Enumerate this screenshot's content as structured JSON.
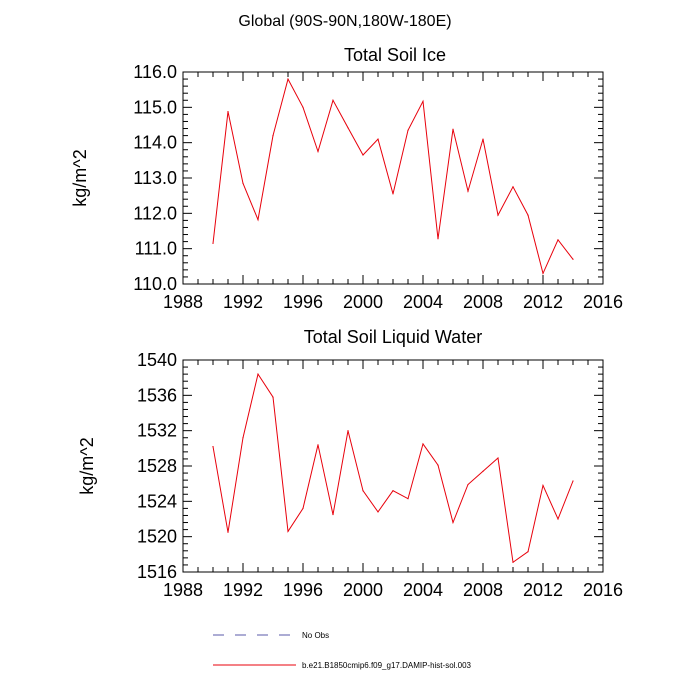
{
  "header": {
    "title": "Global (90S-90N,180W-180E)"
  },
  "chart_data": [
    {
      "type": "line",
      "title": "Total Soil Ice",
      "ylabel": "kg/m^2",
      "xlabel": "",
      "xlim": [
        1988,
        2016
      ],
      "ylim": [
        110.0,
        116.0
      ],
      "x_ticks": [
        1988,
        1992,
        1996,
        2000,
        2004,
        2008,
        2012,
        2016
      ],
      "x_tick_labels": [
        "1988",
        "1992",
        "1996",
        "2000",
        "2004",
        "2008",
        "2012",
        "2016"
      ],
      "y_ticks": [
        110,
        111,
        112,
        113,
        114,
        115,
        116
      ],
      "y_tick_labels": [
        "110.0",
        "111.0",
        "112.0",
        "113.0",
        "114.0",
        "115.0",
        "116.0"
      ],
      "series": [
        {
          "color": "#e8000b",
          "x": [
            1990,
            1991,
            1992,
            1993,
            1994,
            1995,
            1996,
            1997,
            1998,
            1999,
            2000,
            2001,
            2002,
            2003,
            2004,
            2005,
            2006,
            2007,
            2008,
            2009,
            2010,
            2011,
            2012,
            2013,
            2014
          ],
          "y": [
            111.15,
            114.88,
            112.85,
            111.82,
            114.2,
            115.8,
            115.0,
            113.75,
            115.2,
            114.42,
            113.65,
            114.1,
            112.55,
            114.35,
            115.17,
            111.28,
            114.38,
            112.63,
            114.1,
            111.95,
            112.75,
            111.95,
            110.3,
            111.25,
            110.7
          ]
        }
      ]
    },
    {
      "type": "line",
      "title": "Total Soil Liquid Water",
      "ylabel": "kg/m^2",
      "xlabel": "",
      "xlim": [
        1988,
        2016
      ],
      "ylim": [
        1516,
        1540
      ],
      "x_ticks": [
        1988,
        1992,
        1996,
        2000,
        2004,
        2008,
        2012,
        2016
      ],
      "x_tick_labels": [
        "1988",
        "1992",
        "1996",
        "2000",
        "2004",
        "2008",
        "2012",
        "2016"
      ],
      "y_ticks": [
        1516,
        1520,
        1524,
        1528,
        1532,
        1536,
        1540
      ],
      "y_tick_labels": [
        "1516",
        "1520",
        "1524",
        "1528",
        "1532",
        "1536",
        "1540"
      ],
      "series": [
        {
          "color": "#e8000b",
          "x": [
            1990,
            1991,
            1992,
            1993,
            1994,
            1995,
            1996,
            1997,
            1998,
            1999,
            2000,
            2001,
            2002,
            2003,
            2004,
            2005,
            2006,
            2007,
            2008,
            2009,
            2010,
            2011,
            2012,
            2013,
            2014
          ],
          "y": [
            1530.2,
            1520.5,
            1531.2,
            1538.4,
            1535.8,
            1520.6,
            1523.2,
            1530.4,
            1522.5,
            1532.0,
            1525.2,
            1522.8,
            1525.2,
            1524.3,
            1530.5,
            1528.1,
            1521.6,
            1525.9,
            1527.4,
            1528.9,
            1517.1,
            1518.3,
            1525.8,
            1522.0,
            1526.3
          ]
        }
      ]
    }
  ],
  "legend": [
    {
      "label": "No Obs",
      "color": "#5a5aa8",
      "style": "dashed"
    },
    {
      "label": "b.e21.B1850cmip6.f09_g17.DAMIP-hist-sol.003",
      "color": "#e8000b",
      "style": "solid"
    }
  ]
}
